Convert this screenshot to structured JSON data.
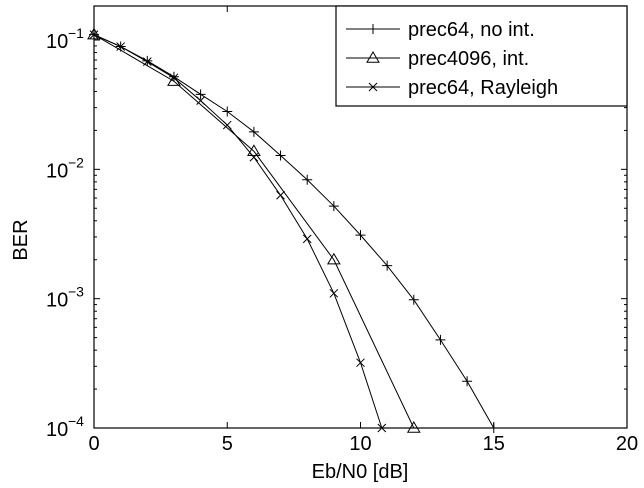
{
  "chart_data": {
    "type": "line",
    "xlabel": "Eb/N0 [dB]",
    "ylabel": "BER",
    "xlim": [
      0,
      20
    ],
    "ylim": [
      0.0001,
      0.15
    ],
    "yscale": "log",
    "grid": false,
    "legend_position": "top-right",
    "x_ticks": [
      0,
      5,
      10,
      15,
      20
    ],
    "x_tick_labels": [
      "0",
      "5",
      "10",
      "15",
      "20"
    ],
    "y_ticks": [
      {
        "value": 0.1,
        "base": "10",
        "exp": "−1"
      },
      {
        "value": 0.01,
        "base": "10",
        "exp": "−2"
      },
      {
        "value": 0.001,
        "base": "10",
        "exp": "−3"
      },
      {
        "value": 0.0001,
        "base": "10",
        "exp": "−4"
      }
    ],
    "series": [
      {
        "name": "prec64, no int.",
        "marker": "plus",
        "x": [
          0,
          1,
          2,
          3,
          4,
          5,
          6,
          7,
          8,
          9,
          10,
          11,
          12,
          13,
          14,
          15
        ],
        "y": [
          0.11,
          0.089,
          0.069,
          0.052,
          0.038,
          0.028,
          0.0195,
          0.0128,
          0.0083,
          0.0052,
          0.0031,
          0.0018,
          0.00098,
          0.00048,
          0.00023,
          0.0001
        ]
      },
      {
        "name": "prec4096, int.",
        "marker": "triangle",
        "x": [
          0,
          3,
          6,
          9,
          12
        ],
        "y": [
          0.11,
          0.048,
          0.0138,
          0.002,
          0.0001
        ]
      },
      {
        "name": "prec64, Rayleigh",
        "marker": "x",
        "x": [
          0,
          1,
          2,
          3,
          4,
          5,
          6,
          7,
          8,
          9,
          10,
          10.8
        ],
        "y": [
          0.11,
          0.089,
          0.068,
          0.051,
          0.034,
          0.022,
          0.0124,
          0.0063,
          0.0029,
          0.0011,
          0.00032,
          0.0001
        ]
      }
    ]
  }
}
